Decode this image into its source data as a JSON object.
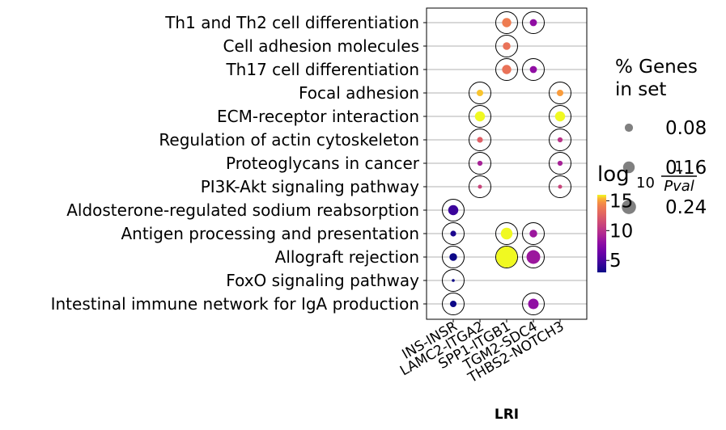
{
  "chart_data": {
    "type": "scatter",
    "title": "",
    "xlabel": "LRI",
    "ylabel": "",
    "categories_x": [
      "INS-INSR",
      "LAMC2-ITGA2",
      "SPP1-ITGB1",
      "TGM2-SDC4",
      "THBS2-NOTCH3"
    ],
    "categories_y": [
      "Th1 and Th2 cell differentiation",
      "Cell adhesion molecules",
      "Th17 cell differentiation",
      "Focal adhesion",
      "ECM-receptor interaction",
      "Regulation of actin cytoskeleton",
      "Proteoglycans in cancer",
      "PI3K-Akt signaling pathway",
      "Aldosterone-regulated sodium reabsorption",
      "Antigen processing and presentation",
      "Allograft rejection",
      "FoxO signaling pathway",
      "Intestinal immune network for IgA production"
    ],
    "grid": "horizontal",
    "points": [
      {
        "x": "SPP1-ITGB1",
        "y": "Th1 and Th2 cell differentiation",
        "genes": 0.1,
        "logp": 14.0
      },
      {
        "x": "TGM2-SDC4",
        "y": "Th1 and Th2 cell differentiation",
        "genes": 0.06,
        "logp": 8.0
      },
      {
        "x": "SPP1-ITGB1",
        "y": "Cell adhesion molecules",
        "genes": 0.07,
        "logp": 13.5
      },
      {
        "x": "SPP1-ITGB1",
        "y": "Th17 cell differentiation",
        "genes": 0.1,
        "logp": 13.5
      },
      {
        "x": "TGM2-SDC4",
        "y": "Th17 cell differentiation",
        "genes": 0.06,
        "logp": 8.0
      },
      {
        "x": "LAMC2-ITGA2",
        "y": "Focal adhesion",
        "genes": 0.05,
        "logp": 15.5
      },
      {
        "x": "THBS2-NOTCH3",
        "y": "Focal adhesion",
        "genes": 0.05,
        "logp": 15.0
      },
      {
        "x": "LAMC2-ITGA2",
        "y": "ECM-receptor interaction",
        "genes": 0.12,
        "logp": 16.5
      },
      {
        "x": "THBS2-NOTCH3",
        "y": "ECM-receptor interaction",
        "genes": 0.12,
        "logp": 16.0
      },
      {
        "x": "LAMC2-ITGA2",
        "y": "Regulation of actin cytoskeleton",
        "genes": 0.04,
        "logp": 12.5
      },
      {
        "x": "THBS2-NOTCH3",
        "y": "Regulation of actin cytoskeleton",
        "genes": 0.03,
        "logp": 10.0
      },
      {
        "x": "LAMC2-ITGA2",
        "y": "Proteoglycans in cancer",
        "genes": 0.03,
        "logp": 9.0
      },
      {
        "x": "THBS2-NOTCH3",
        "y": "Proteoglycans in cancer",
        "genes": 0.03,
        "logp": 9.0
      },
      {
        "x": "LAMC2-ITGA2",
        "y": "PI3K-Akt signaling pathway",
        "genes": 0.02,
        "logp": 11.0
      },
      {
        "x": "THBS2-NOTCH3",
        "y": "PI3K-Akt signaling pathway",
        "genes": 0.02,
        "logp": 11.0
      },
      {
        "x": "INS-INSR",
        "y": "Aldosterone-regulated sodium reabsorption",
        "genes": 0.12,
        "logp": 4.5
      },
      {
        "x": "INS-INSR",
        "y": "Antigen processing and presentation",
        "genes": 0.04,
        "logp": 3.5
      },
      {
        "x": "SPP1-ITGB1",
        "y": "Antigen processing and presentation",
        "genes": 0.16,
        "logp": 16.0
      },
      {
        "x": "TGM2-SDC4",
        "y": "Antigen processing and presentation",
        "genes": 0.07,
        "logp": 8.5
      },
      {
        "x": "INS-INSR",
        "y": "Allograft rejection",
        "genes": 0.07,
        "logp": 3.0
      },
      {
        "x": "SPP1-ITGB1",
        "y": "Allograft rejection",
        "genes": 0.52,
        "logp": 18.0
      },
      {
        "x": "TGM2-SDC4",
        "y": "Allograft rejection",
        "genes": 0.22,
        "logp": 8.5
      },
      {
        "x": "INS-INSR",
        "y": "FoxO signaling pathway",
        "genes": 0.01,
        "logp": 3.0
      },
      {
        "x": "INS-INSR",
        "y": "Intestinal immune network for IgA production",
        "genes": 0.05,
        "logp": 3.0
      },
      {
        "x": "TGM2-SDC4",
        "y": "Intestinal immune network for IgA production",
        "genes": 0.13,
        "logp": 8.0
      }
    ],
    "size_legend": {
      "title_line1": "% Genes",
      "title_line2": "in set",
      "values": [
        0.08,
        0.16,
        0.24
      ],
      "labels": [
        "0.08",
        "0.16",
        "0.24"
      ],
      "color": "#808080"
    },
    "colorbar": {
      "title": "log",
      "title_sub": "10",
      "title_numerator": "1",
      "title_denominator": "Pval",
      "range": [
        3,
        16
      ],
      "ticks": [
        5,
        10,
        15
      ],
      "tick_labels": [
        "5",
        "10",
        "15"
      ],
      "colormap": "plasma"
    }
  }
}
